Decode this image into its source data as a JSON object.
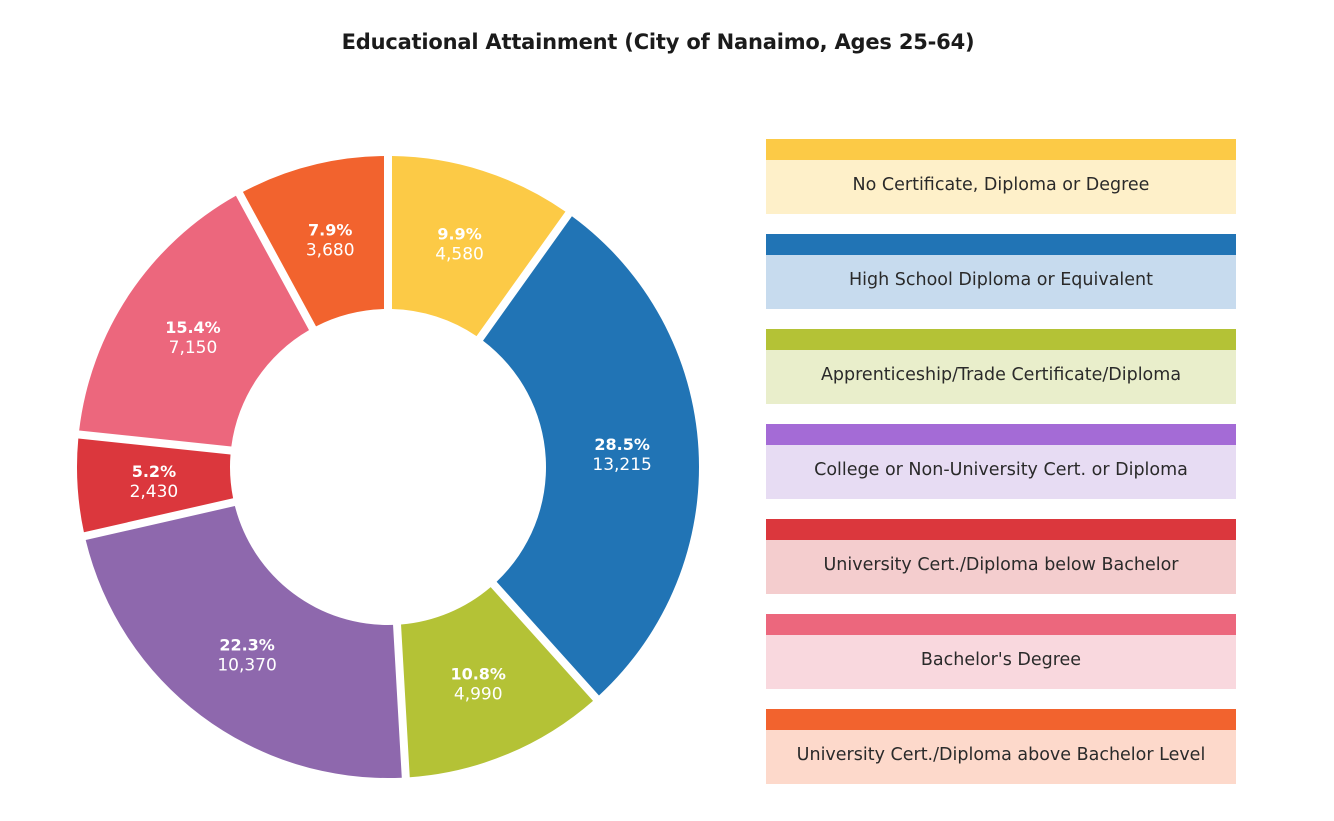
{
  "chart_data": {
    "type": "pie",
    "variant": "donut",
    "title": "Educational Attainment (City of Nanaimo, Ages 25-64)",
    "slices": [
      {
        "label": "No Certificate, Diploma or Degree",
        "percent": "9.9%",
        "value": 4580,
        "value_label": "4,580",
        "color": "#fcca46",
        "light": "#fef0c9"
      },
      {
        "label": "High School Diploma or Equivalent",
        "percent": "28.5%",
        "value": 13215,
        "value_label": "13,215",
        "color": "#2174b5",
        "light": "#c7dbee"
      },
      {
        "label": "Apprenticeship/Trade Certificate/Diploma",
        "percent": "10.8%",
        "value": 4990,
        "value_label": "4,990",
        "color": "#b4c236",
        "light": "#e9eecb"
      },
      {
        "label": "College or Non-University Cert. or Diploma",
        "percent": "22.3%",
        "value": 10370,
        "value_label": "10,370",
        "color": "#8e68ad",
        "light": "#e7dcf3",
        "legend_color": "#a46bd6"
      },
      {
        "label": "University Cert./Diploma below Bachelor",
        "percent": "5.2%",
        "value": 2430,
        "value_label": "2,430",
        "color": "#db373d",
        "light": "#f4cdce"
      },
      {
        "label": "Bachelor's Degree",
        "percent": "15.4%",
        "value": 7150,
        "value_label": "7,150",
        "color": "#ec677d",
        "light": "#f9d8de"
      },
      {
        "label": "University Cert./Diploma above Bachelor Level",
        "percent": "7.9%",
        "value": 3680,
        "value_label": "3,680",
        "color": "#f2632e",
        "light": "#fdd9cb"
      }
    ],
    "legend_position": "right"
  }
}
